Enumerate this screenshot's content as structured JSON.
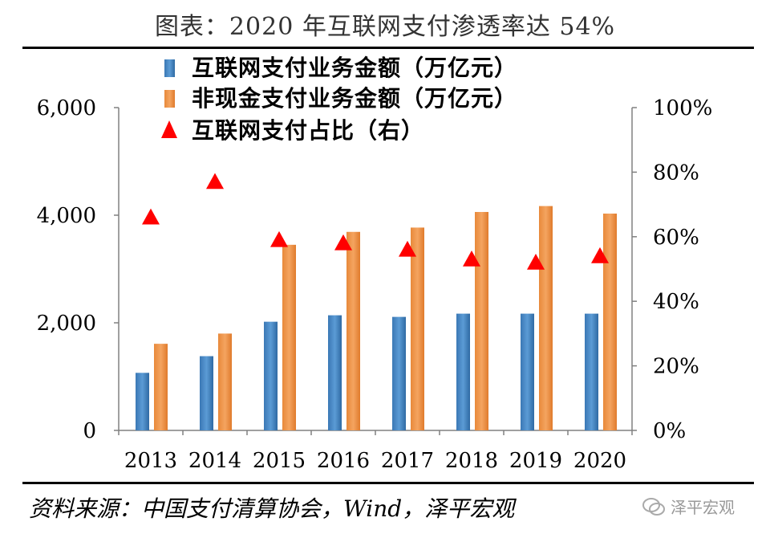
{
  "title": "图表：2020 年互联网支付渗透率达 54%",
  "source": "资料来源：中国支付清算协会，Wind，泽平宏观",
  "watermark": "泽平宏观",
  "colors": {
    "internet_bar": "#5b9bd5",
    "noncash_bar": "#f4a460",
    "ratio_marker": "#ff0000",
    "axis": "#808080"
  },
  "chart_data": {
    "type": "bar",
    "categories": [
      "2013",
      "2014",
      "2015",
      "2016",
      "2017",
      "2018",
      "2019",
      "2020"
    ],
    "series": [
      {
        "name": "互联网支付业务金额（万亿元）",
        "type": "bar",
        "axis": "left",
        "values": [
          1070,
          1380,
          2020,
          2140,
          2110,
          2170,
          2170,
          2170
        ]
      },
      {
        "name": "非现金支付业务金额（万亿元）",
        "type": "bar",
        "axis": "left",
        "values": [
          1610,
          1800,
          3450,
          3690,
          3770,
          4060,
          4170,
          4030
        ]
      },
      {
        "name": "互联网支付占比（右）",
        "type": "scatter",
        "marker": "triangle",
        "axis": "right",
        "values": [
          0.66,
          0.77,
          0.59,
          0.58,
          0.56,
          0.53,
          0.52,
          0.54
        ]
      }
    ],
    "left_axis": {
      "ylim": [
        0,
        6000
      ],
      "ticks": [
        "0",
        "2,000",
        "4,000",
        "6,000"
      ],
      "tick_values": [
        0,
        2000,
        4000,
        6000
      ]
    },
    "right_axis": {
      "ylim": [
        0,
        1
      ],
      "ticks": [
        "0%",
        "20%",
        "40%",
        "60%",
        "80%",
        "100%"
      ],
      "tick_values": [
        0,
        0.2,
        0.4,
        0.6,
        0.8,
        1.0
      ]
    },
    "legend_position": "top-left",
    "grid": false
  }
}
